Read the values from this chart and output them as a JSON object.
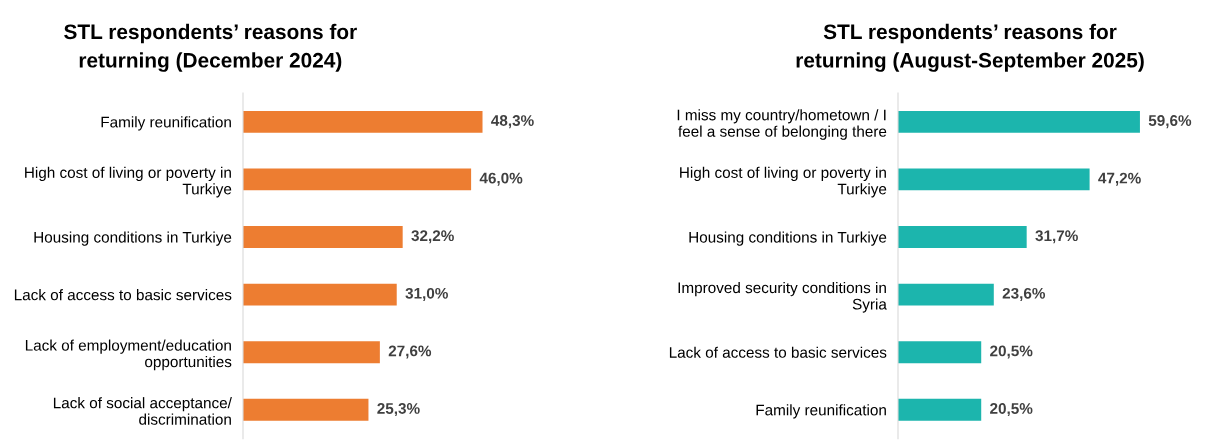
{
  "chart_data": [
    {
      "type": "bar",
      "orientation": "horizontal",
      "title": "STL respondents’ reasons for\nreturning (December 2024)",
      "categories": [
        "Family reunification",
        "High cost of living or poverty in\nTurkiye",
        "Housing conditions in Turkiye",
        "Lack of access to basic services",
        "Lack of employment/education\nopportunities",
        "Lack of social acceptance/\ndiscrimination"
      ],
      "values": [
        48.3,
        46.0,
        32.2,
        31.0,
        27.6,
        25.3
      ],
      "value_labels": [
        "48,3%",
        "46,0%",
        "32,2%",
        "31,0%",
        "27,6%",
        "25,3%"
      ],
      "color": "#ed7d31",
      "tick_labels": "y",
      "grid": false,
      "legend": false
    },
    {
      "type": "bar",
      "orientation": "horizontal",
      "title": "STL respondents’ reasons for\nreturning (August-September 2025)",
      "categories": [
        "I miss my country/hometown / I\nfeel a sense of belonging there",
        "High cost of living or poverty in\nTurkiye",
        "Housing conditions in Turkiye",
        "Improved security conditions in\nSyria",
        "Lack of access to basic services",
        "Family reunification"
      ],
      "values": [
        59.6,
        47.2,
        31.7,
        23.6,
        20.5,
        20.5
      ],
      "value_labels": [
        "59,6%",
        "47,2%",
        "31,7%",
        "23,6%",
        "20,5%",
        "20,5%"
      ],
      "color": "#1cb5ad",
      "tick_labels": "y",
      "grid": false,
      "legend": false
    }
  ]
}
